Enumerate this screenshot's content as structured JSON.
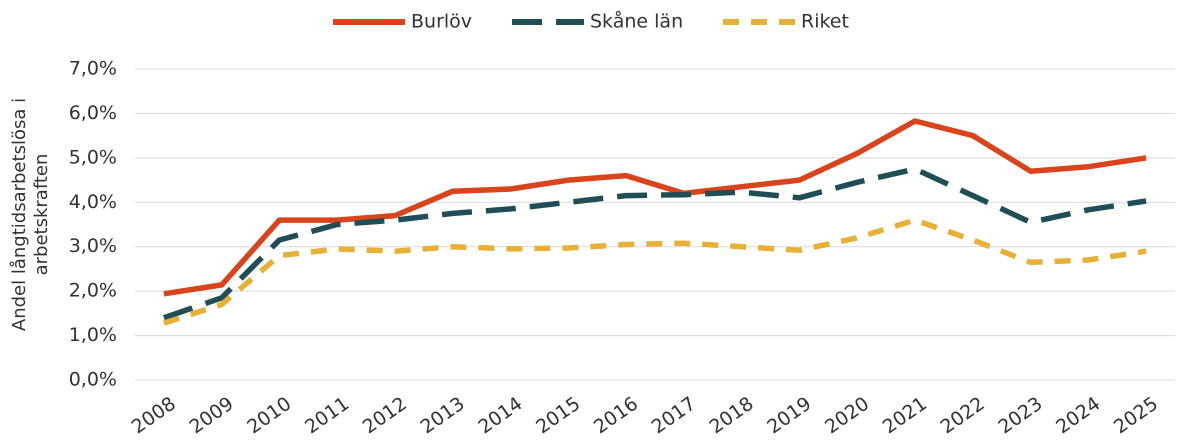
{
  "chart_data": {
    "type": "line",
    "y_label": [
      "Andel långtidsarbetslösa i",
      "arbetskraften"
    ],
    "categories": [
      "2008",
      "2009",
      "2010",
      "2011",
      "2012",
      "2013",
      "2014",
      "2015",
      "2016",
      "2017",
      "2018",
      "2019",
      "2020",
      "2021",
      "2022",
      "2023",
      "2024",
      "2025"
    ],
    "series": [
      {
        "name": "Burlöv",
        "color": "#d9441c",
        "dash": "none",
        "values": [
          1.94,
          2.14,
          3.6,
          3.6,
          3.7,
          4.25,
          4.3,
          4.5,
          4.6,
          4.2,
          4.35,
          4.5,
          5.1,
          5.83,
          5.5,
          4.7,
          4.8,
          5.0
        ]
      },
      {
        "name": "Skåne län",
        "color": "#1f4e56",
        "dash": "30 14",
        "values": [
          1.4,
          1.85,
          3.15,
          3.5,
          3.6,
          3.75,
          3.85,
          4.0,
          4.15,
          4.17,
          4.23,
          4.1,
          4.45,
          4.75,
          4.15,
          3.55,
          3.83,
          4.03
        ]
      },
      {
        "name": "Riket",
        "color": "#e8b034",
        "dash": "16 12",
        "values": [
          1.28,
          1.7,
          2.8,
          2.95,
          2.9,
          3.0,
          2.95,
          2.97,
          3.05,
          3.08,
          3.0,
          2.92,
          3.2,
          3.6,
          3.15,
          2.65,
          2.7,
          2.9
        ]
      }
    ],
    "ylim": [
      0,
      7
    ],
    "yticks": [
      {
        "value": 0,
        "label": "0,0%"
      },
      {
        "value": 1,
        "label": "1,0%"
      },
      {
        "value": 2,
        "label": "2,0%"
      },
      {
        "value": 3,
        "label": "3,0%"
      },
      {
        "value": 4,
        "label": "4,0%"
      },
      {
        "value": 5,
        "label": "5,0%"
      },
      {
        "value": 6,
        "label": "6,0%"
      },
      {
        "value": 7,
        "label": "7,0%"
      }
    ],
    "grid": true,
    "legend": "top"
  }
}
